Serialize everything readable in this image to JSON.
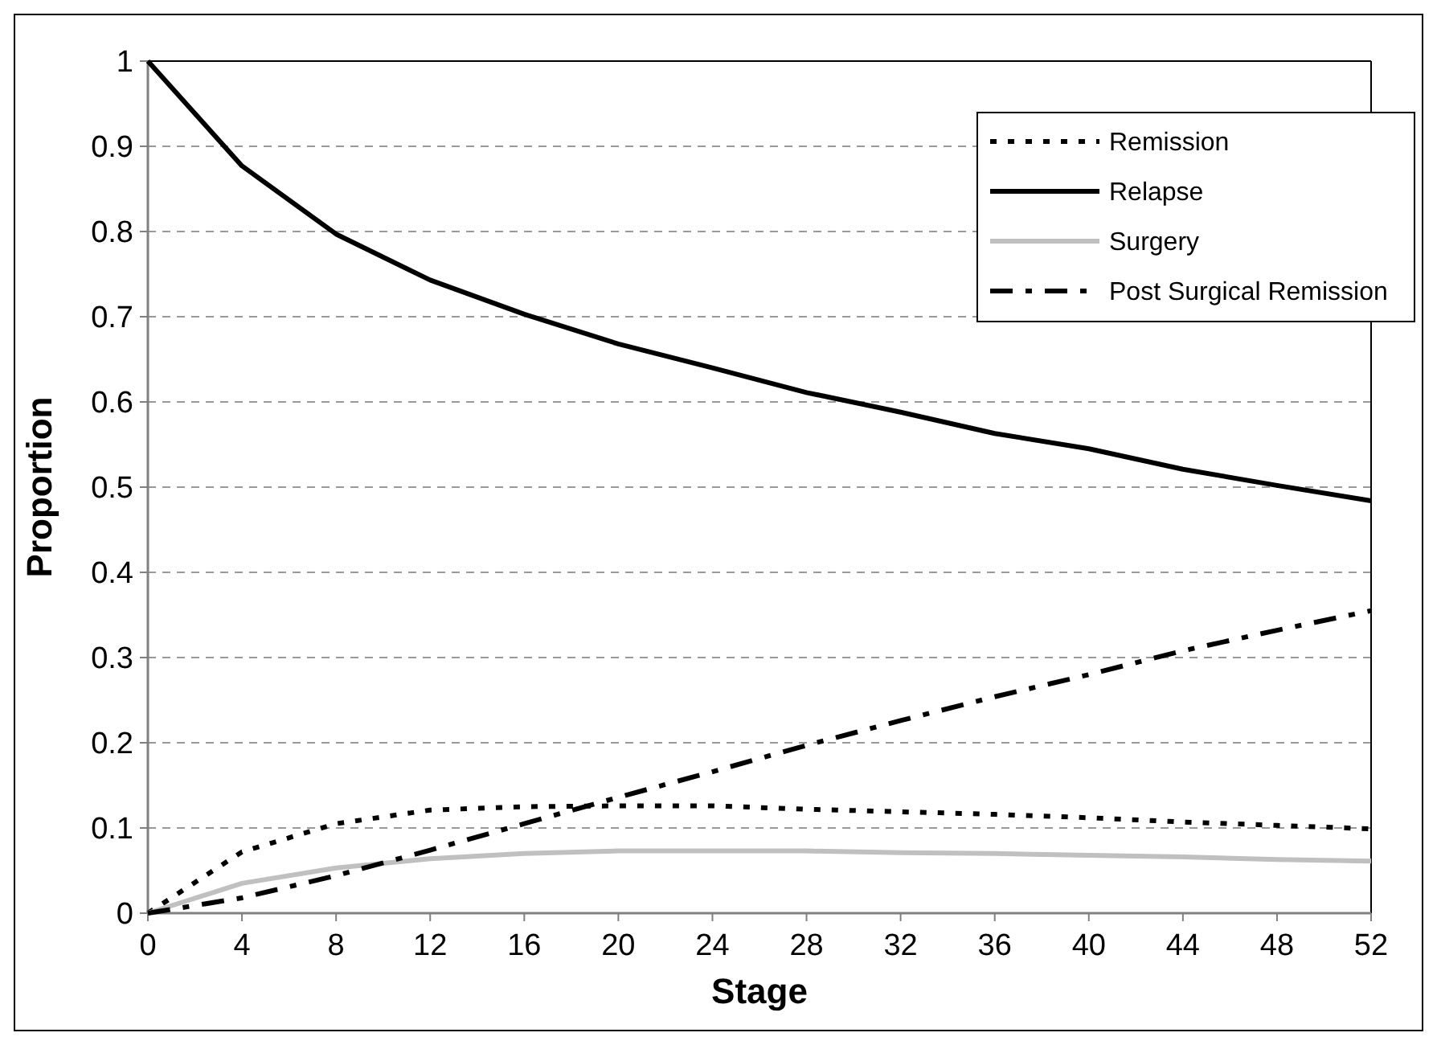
{
  "chart_data": {
    "type": "line",
    "xlabel": "Stage",
    "ylabel": "Proportion",
    "x": [
      0,
      4,
      8,
      12,
      16,
      20,
      24,
      28,
      32,
      36,
      40,
      44,
      48,
      52
    ],
    "xlim": [
      0,
      52
    ],
    "xticks": [
      0,
      4,
      8,
      12,
      16,
      20,
      24,
      28,
      32,
      36,
      40,
      44,
      48,
      52
    ],
    "ylim": [
      0,
      1
    ],
    "yticks": [
      0,
      0.1,
      0.2,
      0.3,
      0.4,
      0.5,
      0.6,
      0.7,
      0.8,
      0.9,
      1
    ],
    "grid": "y",
    "legend": "top right",
    "marker": "none",
    "series": [
      {
        "name": "Remission",
        "color": "#000000",
        "line_style": "dotted",
        "values": [
          0,
          0.072,
          0.105,
          0.121,
          0.125,
          0.126,
          0.126,
          0.122,
          0.119,
          0.116,
          0.112,
          0.107,
          0.103,
          0.099
        ]
      },
      {
        "name": "Relapse",
        "color": "#000000",
        "line_style": "solid",
        "values": [
          1,
          0.877,
          0.797,
          0.743,
          0.703,
          0.668,
          0.64,
          0.611,
          0.588,
          0.563,
          0.545,
          0.521,
          0.502,
          0.484
        ]
      },
      {
        "name": "Surgery",
        "color": "#c0c0c0",
        "line_style": "solid",
        "values": [
          0,
          0.035,
          0.053,
          0.064,
          0.07,
          0.073,
          0.073,
          0.073,
          0.071,
          0.07,
          0.068,
          0.066,
          0.063,
          0.061
        ]
      },
      {
        "name": "Post Surgical Remission",
        "color": "#000000",
        "line_style": "dashed",
        "values": [
          0,
          0.018,
          0.044,
          0.074,
          0.105,
          0.136,
          0.166,
          0.197,
          0.226,
          0.254,
          0.28,
          0.308,
          0.332,
          0.355
        ]
      }
    ]
  }
}
